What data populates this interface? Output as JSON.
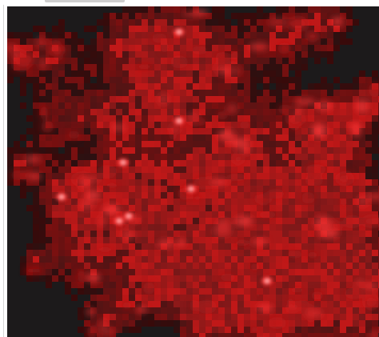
{
  "viewer": {
    "image_type": "red-channel fluorescence microscopy field",
    "colors": {
      "background": "#1c1a1b",
      "tile_dim": "#3a0a0a",
      "tile_mid": "#7a1010",
      "tile_hot": "#c01818",
      "glow": "#ff3a3a",
      "core": "#ffd0d0"
    },
    "scrollbar_visible": false
  },
  "icons": {
    "top_tab": "tab-indicator",
    "left_rule": "divider"
  }
}
